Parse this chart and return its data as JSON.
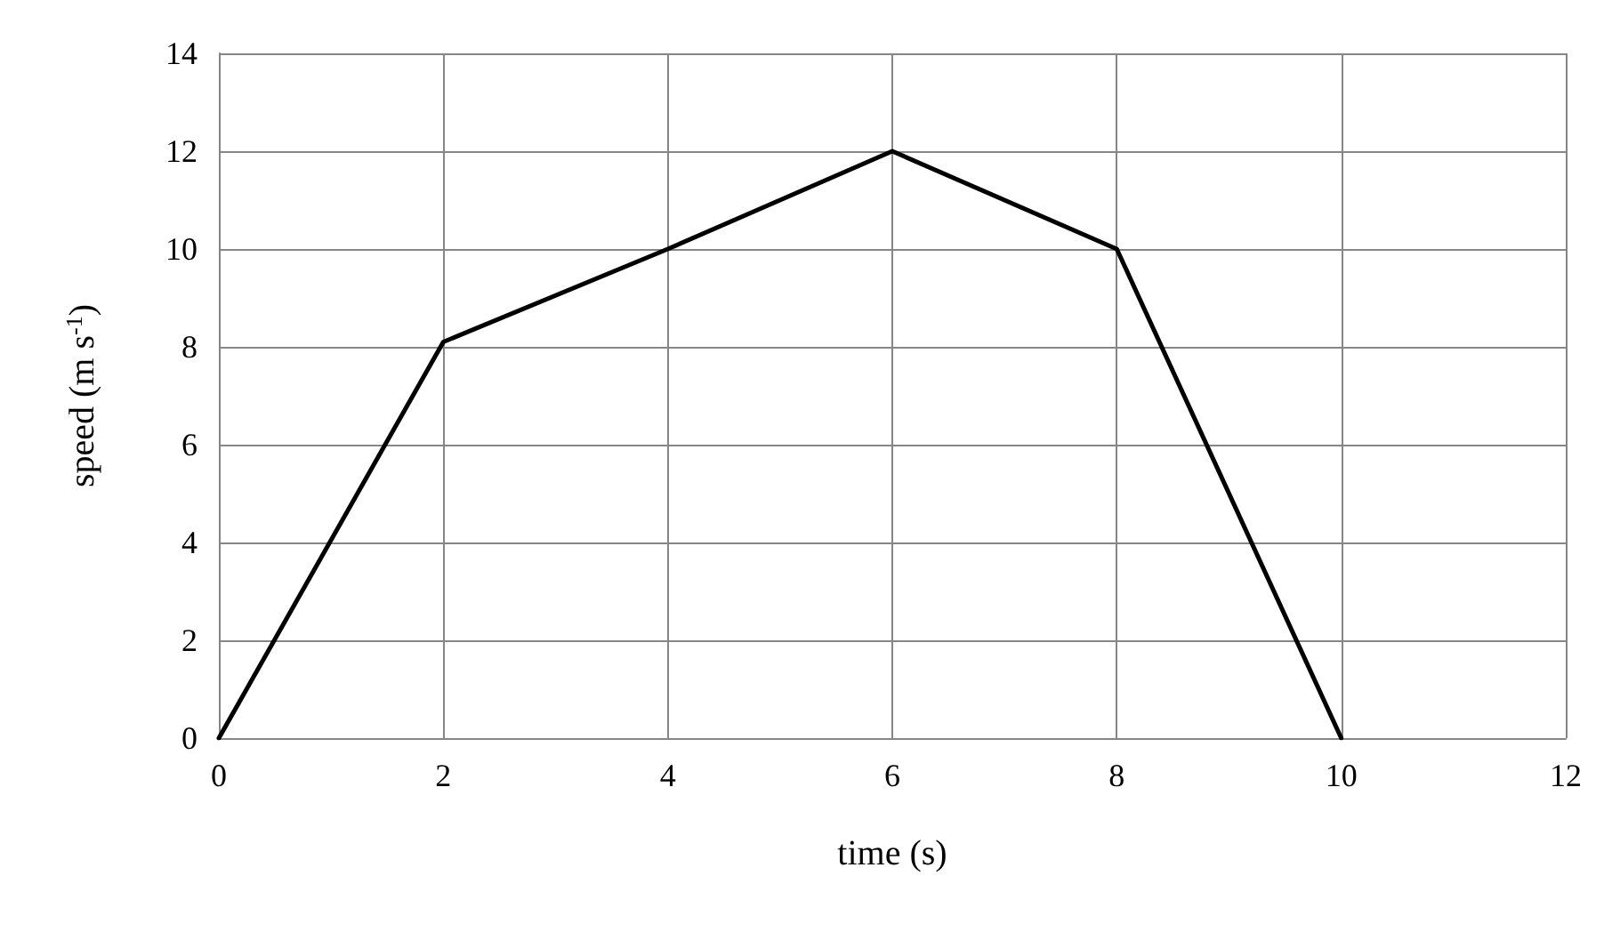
{
  "chart_data": {
    "type": "line",
    "xlabel": "time (s)",
    "ylabel": "speed (m s$^{-1}$)",
    "x": [
      0,
      2,
      4,
      6,
      8,
      10
    ],
    "series": [
      {
        "color": "#000000",
        "values": [
          0,
          8.1,
          10,
          12,
          10,
          0
        ]
      }
    ],
    "xlim": [
      0,
      12
    ],
    "xticks": [
      0,
      2,
      4,
      6,
      8,
      10,
      12
    ],
    "ylim": [
      0,
      14
    ],
    "yticks": [
      0,
      2,
      4,
      6,
      8,
      10,
      12,
      14
    ],
    "grid": true,
    "marker": "none",
    "line_style": "solid"
  }
}
